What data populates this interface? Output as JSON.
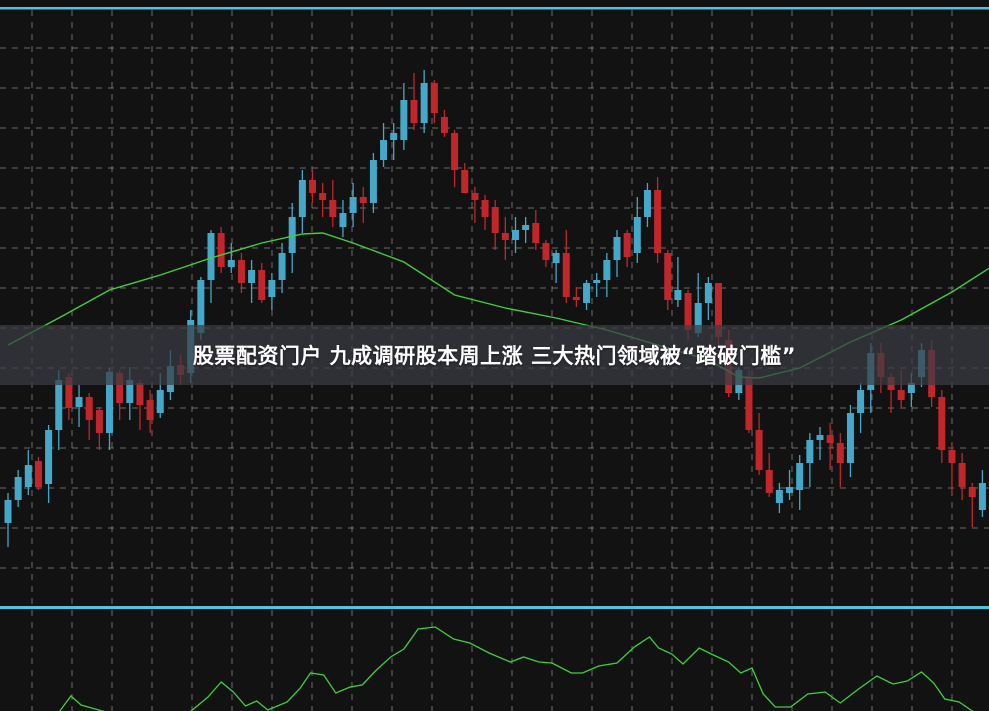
{
  "headline": "股票配资门户 九成调研股本周上涨 三大热门领域被“踏破门槛”",
  "colors": {
    "background": "#121212",
    "up_candle": "#45a8c8",
    "down_candle": "#c1262a",
    "moving_average": "#3fcf3f",
    "indicator_line": "#3fcf3f",
    "panel_border": "#4fc3e0",
    "grid": "#8a8a8a"
  },
  "chart_data": [
    {
      "type": "candlestick",
      "title": "",
      "grid": true,
      "candle_fields": [
        "open",
        "close",
        "high",
        "low"
      ],
      "candles": [
        [
          7.7,
          10.0,
          10.7,
          5.3
        ],
        [
          10.0,
          12.3,
          13.0,
          9.3
        ],
        [
          11.3,
          13.5,
          15.0,
          10.5
        ],
        [
          13.9,
          11.3,
          14.3,
          11.0
        ],
        [
          11.6,
          17.0,
          17.5,
          9.7
        ],
        [
          17.0,
          22.0,
          23.0,
          15.0
        ],
        [
          22.3,
          19.2,
          22.7,
          18.0
        ],
        [
          19.3,
          20.3,
          21.5,
          17.3
        ],
        [
          20.3,
          18.0,
          20.7,
          16.0
        ],
        [
          19.0,
          16.7,
          19.3,
          15.0
        ],
        [
          16.7,
          22.8,
          23.2,
          15.0
        ],
        [
          22.7,
          19.7,
          23.0,
          18.0
        ],
        [
          19.7,
          22.0,
          23.3,
          18.0
        ],
        [
          21.7,
          19.5,
          22.0,
          17.0
        ],
        [
          20.0,
          18.0,
          21.0,
          16.7
        ],
        [
          18.7,
          21.0,
          22.7,
          18.2
        ],
        [
          20.8,
          23.4,
          25.0,
          20.0
        ],
        [
          23.5,
          22.5,
          24.5,
          21.5
        ],
        [
          22.7,
          28.0,
          29.0,
          21.7
        ],
        [
          26.7,
          32.0,
          32.3,
          26.0
        ],
        [
          32.0,
          36.7,
          37.0,
          29.7
        ],
        [
          36.7,
          33.3,
          37.3,
          32.7
        ],
        [
          33.3,
          34.0,
          35.7,
          32.7
        ],
        [
          34.0,
          31.7,
          34.7,
          30.7
        ],
        [
          31.7,
          33.0,
          34.0,
          29.7
        ],
        [
          33.0,
          30.0,
          33.7,
          29.7
        ],
        [
          30.3,
          32.0,
          32.7,
          29.0
        ],
        [
          32.0,
          34.7,
          35.7,
          30.7
        ],
        [
          34.7,
          38.3,
          39.7,
          32.7
        ],
        [
          38.3,
          42.0,
          43.0,
          36.7
        ],
        [
          42.0,
          40.7,
          43.0,
          39.7
        ],
        [
          40.7,
          40.0,
          41.7,
          38.3
        ],
        [
          40.0,
          38.3,
          42.0,
          37.3
        ],
        [
          37.3,
          38.7,
          40.0,
          36.3
        ],
        [
          38.7,
          40.3,
          41.7,
          37.3
        ],
        [
          40.3,
          39.7,
          41.3,
          37.7
        ],
        [
          39.7,
          44.0,
          44.7,
          38.7
        ],
        [
          44.0,
          46.0,
          47.7,
          43.3
        ],
        [
          46.0,
          46.7,
          47.7,
          44.0
        ],
        [
          46.0,
          50.0,
          51.7,
          45.0
        ],
        [
          50.0,
          47.7,
          52.7,
          47.0
        ],
        [
          47.7,
          51.7,
          53.0,
          46.7
        ],
        [
          51.7,
          48.7,
          52.0,
          47.7
        ],
        [
          48.3,
          46.7,
          49.0,
          46.3
        ],
        [
          46.7,
          43.0,
          47.0,
          41.3
        ],
        [
          43.0,
          40.7,
          43.7,
          40.7
        ],
        [
          40.7,
          40.0,
          41.3,
          37.7
        ],
        [
          40.0,
          38.3,
          40.5,
          37.0
        ],
        [
          39.3,
          36.7,
          40.0,
          35.0
        ],
        [
          36.7,
          36.0,
          38.3,
          34.0
        ],
        [
          36.0,
          37.0,
          38.3,
          34.7
        ],
        [
          37.0,
          37.5,
          38.3,
          35.7
        ],
        [
          37.7,
          35.7,
          39.0,
          35.0
        ],
        [
          35.7,
          34.0,
          36.0,
          33.3
        ],
        [
          33.7,
          34.7,
          35.0,
          31.7
        ],
        [
          34.7,
          30.3,
          37.0,
          29.7
        ],
        [
          30.3,
          30.0,
          31.3,
          29.3
        ],
        [
          29.7,
          31.7,
          32.0,
          29.0
        ],
        [
          31.7,
          32.0,
          32.7,
          30.3
        ],
        [
          32.0,
          34.0,
          34.7,
          30.3
        ],
        [
          34.0,
          36.3,
          37.0,
          32.3
        ],
        [
          36.7,
          34.3,
          37.0,
          33.3
        ],
        [
          34.7,
          38.3,
          40.3,
          33.7
        ],
        [
          38.3,
          41.0,
          41.7,
          37.3
        ],
        [
          41.0,
          34.7,
          42.3,
          33.7
        ],
        [
          34.7,
          30.0,
          35.0,
          29.0
        ],
        [
          30.0,
          31.0,
          34.3,
          29.3
        ],
        [
          30.7,
          27.0,
          31.0,
          26.0
        ],
        [
          26.7,
          29.7,
          32.7,
          26.3
        ],
        [
          29.7,
          31.7,
          32.3,
          28.0
        ],
        [
          31.7,
          26.3,
          31.7,
          25.3
        ],
        [
          26.0,
          20.7,
          27.0,
          20.3
        ],
        [
          20.7,
          23.0,
          23.3,
          20.0
        ],
        [
          22.3,
          17.0,
          23.0,
          16.7
        ],
        [
          17.0,
          13.0,
          18.7,
          12.5
        ],
        [
          13.0,
          10.7,
          14.7,
          10.3
        ],
        [
          9.7,
          11.0,
          11.7,
          8.7
        ],
        [
          10.7,
          11.3,
          13.0,
          10.0
        ],
        [
          11.0,
          13.7,
          14.5,
          9.0
        ],
        [
          13.7,
          16.0,
          16.7,
          11.3
        ],
        [
          16.0,
          16.5,
          17.3,
          14.0
        ],
        [
          16.5,
          15.7,
          17.7,
          13.0
        ],
        [
          15.7,
          13.7,
          16.7,
          11.3
        ],
        [
          13.7,
          18.7,
          19.5,
          12.3
        ],
        [
          18.7,
          21.0,
          21.7,
          16.7
        ],
        [
          21.0,
          24.7,
          25.7,
          18.7
        ],
        [
          24.7,
          22.3,
          25.7,
          20.7
        ],
        [
          22.3,
          21.0,
          22.7,
          18.7
        ],
        [
          21.0,
          20.0,
          23.0,
          19.3
        ],
        [
          20.7,
          21.7,
          22.7,
          19.3
        ],
        [
          22.3,
          25.0,
          25.7,
          21.3
        ],
        [
          25.0,
          20.3,
          26.0,
          19.3
        ],
        [
          20.3,
          15.0,
          21.0,
          13.7
        ],
        [
          15.0,
          13.7,
          15.7,
          10.7
        ],
        [
          13.7,
          11.3,
          14.7,
          10.0
        ],
        [
          11.3,
          10.3,
          11.7,
          7.3
        ],
        [
          9.0,
          11.7,
          13.0,
          8.3
        ]
      ],
      "moving_average": [
        [
          0,
          25.5
        ],
        [
          5,
          28.2
        ],
        [
          10,
          31.0
        ],
        [
          15,
          32.5
        ],
        [
          20,
          34.2
        ],
        [
          25,
          35.7
        ],
        [
          29,
          36.6
        ],
        [
          31,
          36.7
        ],
        [
          34,
          35.7
        ],
        [
          39,
          33.8
        ],
        [
          44,
          30.5
        ],
        [
          49,
          29.2
        ],
        [
          54,
          28.2
        ],
        [
          59,
          27.0
        ],
        [
          64,
          25.5
        ],
        [
          69,
          24.0
        ],
        [
          72,
          22.3
        ],
        [
          74,
          22.2
        ],
        [
          78,
          23.2
        ],
        [
          83,
          25.8
        ],
        [
          88,
          28.0
        ],
        [
          93,
          30.8
        ],
        [
          97,
          33.4
        ]
      ]
    },
    {
      "type": "line",
      "title": "",
      "grid": true,
      "values": [
        [
          5.1,
          0
        ],
        [
          6.2,
          15
        ],
        [
          7.2,
          6
        ],
        [
          8.6,
          2
        ],
        [
          10.0,
          -2
        ],
        [
          17.8,
          -2
        ],
        [
          19.7,
          14
        ],
        [
          21.0,
          29
        ],
        [
          22.2,
          19
        ],
        [
          23.4,
          5
        ],
        [
          24.5,
          10
        ],
        [
          25.6,
          1
        ],
        [
          27.5,
          9
        ],
        [
          28.8,
          23
        ],
        [
          29.8,
          38
        ],
        [
          31.1,
          36
        ],
        [
          32.3,
          18
        ],
        [
          33.7,
          24
        ],
        [
          34.9,
          26
        ],
        [
          36.2,
          40
        ],
        [
          37.7,
          54
        ],
        [
          39.0,
          62
        ],
        [
          40.4,
          82
        ],
        [
          42.1,
          84
        ],
        [
          43.9,
          72
        ],
        [
          45.5,
          68
        ],
        [
          47.4,
          58
        ],
        [
          49.5,
          49
        ],
        [
          50.8,
          54
        ],
        [
          52.3,
          49
        ],
        [
          53.6,
          48
        ],
        [
          55.5,
          38
        ],
        [
          56.6,
          38
        ],
        [
          58.2,
          45
        ],
        [
          60.0,
          48
        ],
        [
          61.7,
          64
        ],
        [
          63.2,
          74
        ],
        [
          64.1,
          63
        ],
        [
          65.4,
          57
        ],
        [
          66.5,
          47
        ],
        [
          68.1,
          63
        ],
        [
          69.5,
          56
        ],
        [
          71.0,
          49
        ],
        [
          72.2,
          38
        ],
        [
          73.3,
          43
        ],
        [
          74.4,
          17
        ],
        [
          75.6,
          4
        ],
        [
          77.1,
          4
        ],
        [
          78.8,
          17
        ],
        [
          80.5,
          19
        ],
        [
          82.0,
          8
        ],
        [
          83.8,
          22
        ],
        [
          85.6,
          35
        ],
        [
          87.2,
          27
        ],
        [
          88.6,
          30
        ],
        [
          90.0,
          39
        ],
        [
          91.2,
          28
        ],
        [
          92.3,
          12
        ],
        [
          93.7,
          9
        ],
        [
          95.0,
          0
        ],
        [
          96.7,
          -9
        ]
      ]
    }
  ]
}
